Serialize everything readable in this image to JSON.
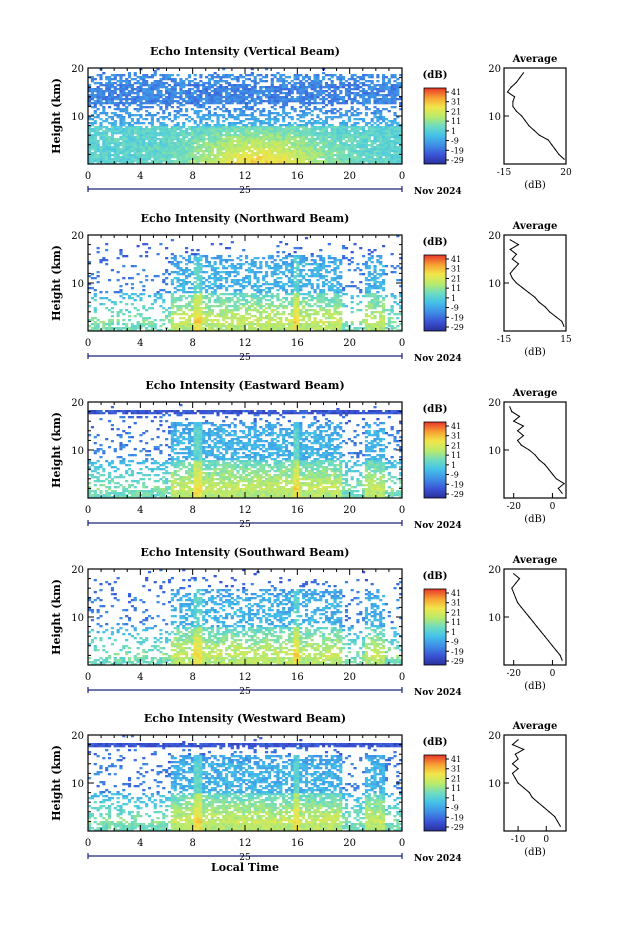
{
  "chart_data": [
    {
      "type": "heatmap",
      "title": "Echo Intensity (Vertical Beam)",
      "ylabel": "Height (km)",
      "ylim": [
        0,
        20
      ],
      "yticks": [
        "20",
        "10"
      ],
      "xlim": [
        0,
        24
      ],
      "xticks": [
        "0",
        "4",
        "8",
        "12",
        "16",
        "20",
        "0"
      ],
      "date_day": "25",
      "date_month_year": "Nov 2024",
      "colorbar": {
        "unit": "(dB)",
        "ticks": [
          "41",
          "31",
          "21",
          "11",
          "1",
          "-9",
          "-19",
          "-29"
        ]
      },
      "profile": {
        "title": "Average",
        "xlabel": "(dB)",
        "xticks": [
          "-15",
          "20"
        ],
        "xlim": [
          -15,
          20
        ],
        "yticks": [
          "20",
          "10"
        ],
        "heights": [
          1,
          2,
          3,
          4,
          5,
          6,
          7,
          8,
          9,
          10,
          11,
          12,
          13,
          14,
          15,
          16,
          17,
          18,
          19
        ],
        "values": [
          19,
          16,
          14,
          12,
          10,
          5,
          2,
          -1,
          -3,
          -5,
          -8,
          -10,
          -10,
          -9,
          -13,
          -11,
          -8,
          -6,
          -4
        ]
      }
    },
    {
      "type": "heatmap",
      "title": "Echo Intensity (Northward Beam)",
      "ylabel": "Height (km)",
      "ylim": [
        0,
        20
      ],
      "yticks": [
        "20",
        "10"
      ],
      "xlim": [
        0,
        24
      ],
      "xticks": [
        "0",
        "4",
        "8",
        "12",
        "16",
        "20",
        "0"
      ],
      "date_day": "25",
      "date_month_year": "Nov 2024",
      "colorbar": {
        "unit": "(dB)",
        "ticks": [
          "41",
          "31",
          "21",
          "11",
          "1",
          "-9",
          "-19",
          "-29"
        ]
      },
      "profile": {
        "title": "Average",
        "xlabel": "(dB)",
        "xticks": [
          "-15",
          "15"
        ],
        "xlim": [
          -15,
          15
        ],
        "yticks": [
          "20",
          "10"
        ],
        "heights": [
          1,
          2,
          3,
          4,
          5,
          6,
          7,
          8,
          9,
          10,
          11,
          12,
          13,
          14,
          15,
          16,
          17,
          18,
          19
        ],
        "values": [
          14,
          13,
          10,
          7,
          5,
          2,
          0,
          -3,
          -6,
          -9,
          -11,
          -12,
          -10,
          -8,
          -11,
          -9,
          -12,
          -8,
          -12
        ]
      }
    },
    {
      "type": "heatmap",
      "title": "Echo Intensity (Eastward Beam)",
      "ylabel": "Height (km)",
      "ylim": [
        0,
        20
      ],
      "yticks": [
        "20",
        "10"
      ],
      "xlim": [
        0,
        24
      ],
      "xticks": [
        "0",
        "4",
        "8",
        "12",
        "16",
        "20",
        "0"
      ],
      "date_day": "25",
      "date_month_year": "Nov 2024",
      "colorbar": {
        "unit": "(dB)",
        "ticks": [
          "41",
          "31",
          "21",
          "11",
          "1",
          "-9",
          "-19",
          "-29"
        ]
      },
      "profile": {
        "title": "Average",
        "xlabel": "(dB)",
        "xticks": [
          "-20",
          "0"
        ],
        "xlim": [
          -25,
          7
        ],
        "yticks": [
          "20",
          "10"
        ],
        "heights": [
          1,
          2,
          3,
          4,
          5,
          6,
          7,
          8,
          9,
          10,
          11,
          12,
          13,
          14,
          15,
          16,
          17,
          18,
          19
        ],
        "values": [
          5,
          3,
          6,
          2,
          0,
          -2,
          -4,
          -7,
          -9,
          -12,
          -16,
          -18,
          -15,
          -18,
          -15,
          -20,
          -17,
          -21,
          -22
        ]
      }
    },
    {
      "type": "heatmap",
      "title": "Echo Intensity (Southward Beam)",
      "ylabel": "Height (km)",
      "ylim": [
        0,
        20
      ],
      "yticks": [
        "20",
        "10"
      ],
      "xlim": [
        0,
        24
      ],
      "xticks": [
        "0",
        "4",
        "8",
        "12",
        "16",
        "20",
        "0"
      ],
      "date_day": "25",
      "date_month_year": "Nov 2024",
      "colorbar": {
        "unit": "(dB)",
        "ticks": [
          "41",
          "31",
          "21",
          "11",
          "1",
          "-9",
          "-19",
          "-29"
        ]
      },
      "profile": {
        "title": "Average",
        "xlabel": "(dB)",
        "xticks": [
          "-20",
          "0"
        ],
        "xlim": [
          -25,
          7
        ],
        "yticks": [
          "20",
          "10"
        ],
        "heights": [
          1,
          2,
          3,
          4,
          5,
          6,
          7,
          8,
          9,
          10,
          11,
          12,
          13,
          14,
          15,
          16,
          17,
          18,
          19
        ],
        "values": [
          5,
          4,
          2,
          0,
          -2,
          -4,
          -6,
          -8,
          -10,
          -12,
          -14,
          -16,
          -18,
          -19,
          -20,
          -21,
          -19,
          -17,
          -20
        ]
      }
    },
    {
      "type": "heatmap",
      "title": "Echo Intensity (Westward Beam)",
      "ylabel": "Height (km)",
      "ylim": [
        0,
        20
      ],
      "yticks": [
        "20",
        "10"
      ],
      "xlim": [
        0,
        24
      ],
      "xticks": [
        "0",
        "4",
        "8",
        "12",
        "16",
        "20",
        "0"
      ],
      "date_day": "25",
      "date_month_year": "Nov 2024",
      "xlabel": "Local Time",
      "colorbar": {
        "unit": "(dB)",
        "ticks": [
          "41",
          "31",
          "21",
          "11",
          "1",
          "-9",
          "-19",
          "-29"
        ]
      },
      "profile": {
        "title": "Average",
        "xlabel": "(dB)",
        "xticks": [
          "-10",
          "0"
        ],
        "xlim": [
          -15,
          7
        ],
        "yticks": [
          "20",
          "10"
        ],
        "heights": [
          1,
          2,
          3,
          4,
          5,
          6,
          7,
          8,
          9,
          10,
          11,
          12,
          13,
          14,
          15,
          16,
          17,
          18,
          19
        ],
        "values": [
          5,
          4,
          3,
          1,
          -1,
          -3,
          -5,
          -6,
          -8,
          -10,
          -11,
          -12,
          -10,
          -12,
          -10,
          -11,
          -8,
          -12,
          -10
        ]
      }
    }
  ]
}
